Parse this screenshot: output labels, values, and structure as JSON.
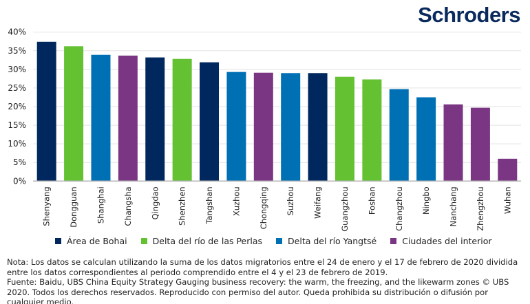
{
  "logo_text": "Schroders",
  "chart_data": {
    "type": "bar",
    "categories": [
      "Shenyang",
      "Dongguan",
      "Shanghai",
      "Changsha",
      "Qingdao",
      "Shenzhen",
      "Tangshan",
      "Xuzhou",
      "Chongqing",
      "Suzhou",
      "Weifang",
      "Guangzhou",
      "Foshan",
      "Changzhou",
      "Ningbo",
      "Nanchang",
      "Zhengzhou",
      "Wuhan"
    ],
    "values": [
      37.4,
      36.2,
      33.9,
      33.7,
      33.2,
      32.8,
      31.9,
      29.3,
      29.1,
      29.0,
      29.0,
      28.0,
      27.3,
      24.7,
      22.5,
      20.6,
      19.7,
      6.0
    ],
    "groups": [
      "Área de Bohai",
      "Delta del río de las Perlas",
      "Delta del río Yangtsé",
      "Ciudades del interior",
      "Área de Bohai",
      "Delta del río de las Perlas",
      "Área de Bohai",
      "Delta del río Yangtsé",
      "Ciudades del interior",
      "Delta del río Yangtsé",
      "Área de Bohai",
      "Delta del río de las Perlas",
      "Delta del río de las Perlas",
      "Delta del río Yangtsé",
      "Delta del río Yangtsé",
      "Ciudades del interior",
      "Ciudades del interior",
      "Ciudades del interior"
    ],
    "yticks": [
      "0%",
      "5%",
      "10%",
      "15%",
      "20%",
      "25%",
      "30%",
      "35%",
      "40%"
    ],
    "ylim": [
      0,
      40
    ],
    "grid": true,
    "legend_position": "bottom",
    "legend": [
      {
        "name": "Área de Bohai",
        "color": "#00285e"
      },
      {
        "name": "Delta del río de las Perlas",
        "color": "#63c132"
      },
      {
        "name": "Delta del río Yangtsé",
        "color": "#0070b4"
      },
      {
        "name": "Ciudades del interior",
        "color": "#7b3683"
      }
    ]
  },
  "notes": {
    "note": "Nota: Los datos se calculan utilizando la suma de los datos migratorios entre el 24 de enero y el 17 de febrero de 2020 dividida entre los datos correspondientes al periodo comprendido entre el 4 y el 23 de febrero de 2019.",
    "source": "Fuente: Baidu, UBS China Equity Strategy Gauging business recovery: the warm, the freezing, and the likewarm zones © UBS 2020. Todos los derechos reservados. Reproducido con permiso del autor. Queda prohibida su distribución o difusión por cualquier medio."
  }
}
